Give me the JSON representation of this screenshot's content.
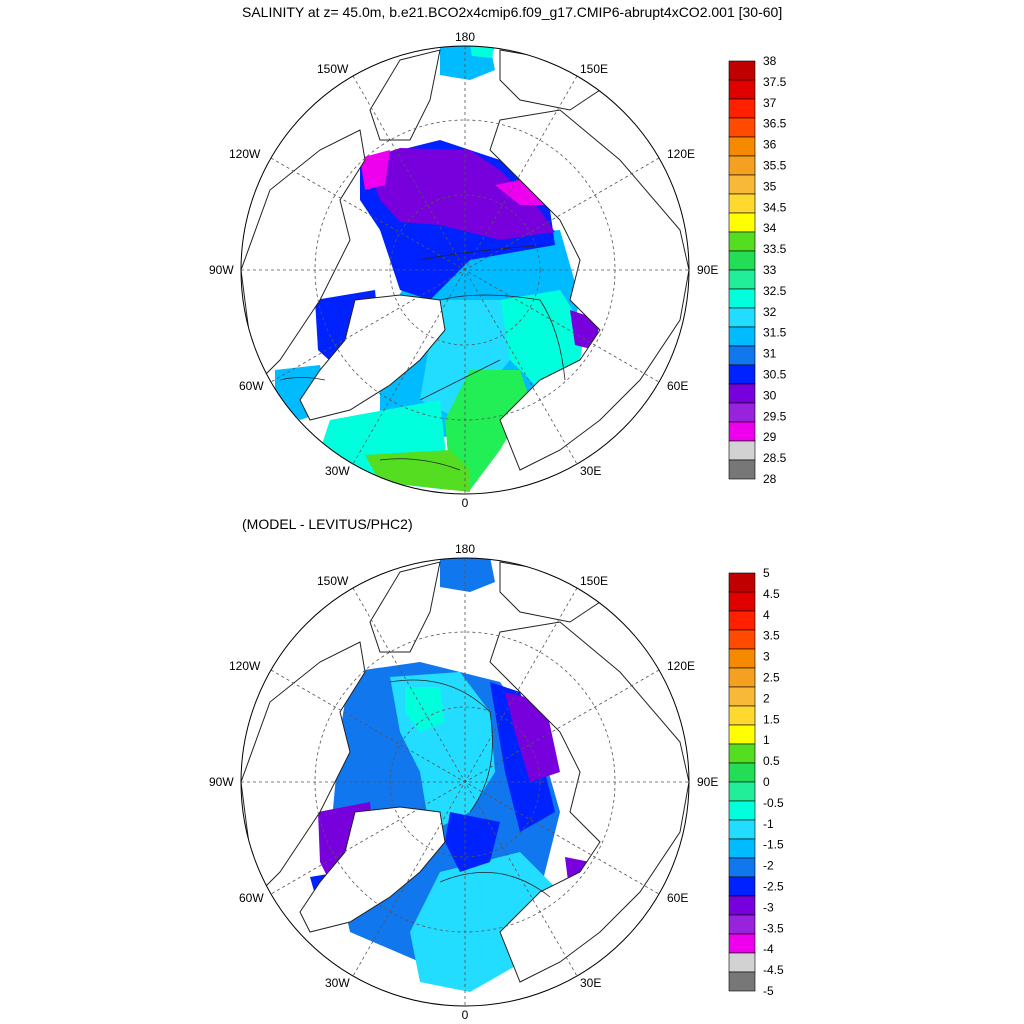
{
  "main_title": "SALINITY at z=  45.0m, b.e21.BCO2x4cmip6.f09_g17.CMIP6-abrupt4xCO2.001 [30-60]",
  "diff_title": "(MODEL - LEVITUS/PHC2)",
  "longitude_labels": {
    "top": "180",
    "bottom": "0",
    "left": "90W",
    "right": "90E",
    "upper_left": "150W",
    "upper_right": "150E",
    "mid_left": "120W",
    "mid_right": "120E",
    "lower_left": "60W",
    "lower_right": "60E",
    "bottom_left": "30W",
    "bottom_right": "30E"
  },
  "colorbar_salinity": {
    "labels": [
      "38",
      "37.5",
      "37",
      "36.5",
      "36",
      "35.5",
      "35",
      "34.5",
      "34",
      "33.5",
      "33",
      "32.5",
      "32",
      "31.5",
      "31",
      "30.5",
      "30",
      "29.5",
      "29",
      "28.5",
      "28"
    ],
    "colors": [
      "#c00000",
      "#e00000",
      "#ff2000",
      "#ff4a00",
      "#f58a00",
      "#f5a020",
      "#f8b838",
      "#ffd830",
      "#ffff00",
      "#55dd22",
      "#22dd55",
      "#22ee99",
      "#00ffdd",
      "#22ddff",
      "#00bbff",
      "#1177ee",
      "#0022ff",
      "#7700dd",
      "#9922dd",
      "#ee00ee",
      "#d2d2d2",
      "#777777"
    ]
  },
  "colorbar_diff": {
    "labels": [
      "5",
      "4.5",
      "4",
      "3.5",
      "3",
      "2.5",
      "2",
      "1.5",
      "1",
      "0.5",
      "0",
      "-0.5",
      "-1",
      "-1.5",
      "-2",
      "-2.5",
      "-3",
      "-3.5",
      "-4",
      "-4.5",
      "-5"
    ],
    "colors": [
      "#c00000",
      "#e00000",
      "#ff2000",
      "#ff4a00",
      "#f58a00",
      "#f5a020",
      "#f8b838",
      "#ffd830",
      "#ffff00",
      "#55dd22",
      "#22dd55",
      "#22ee99",
      "#00ffdd",
      "#22ddff",
      "#00bbff",
      "#1177ee",
      "#0022ff",
      "#7700dd",
      "#9922dd",
      "#ee00ee",
      "#d2d2d2",
      "#777777"
    ]
  },
  "colors": {
    "land": "#ffffff",
    "coast": "#222222",
    "grid": "#555555",
    "atlantic_salty": "#22ee55",
    "diff_main": "#22ccff",
    "diff_dark": "#1177ee"
  }
}
